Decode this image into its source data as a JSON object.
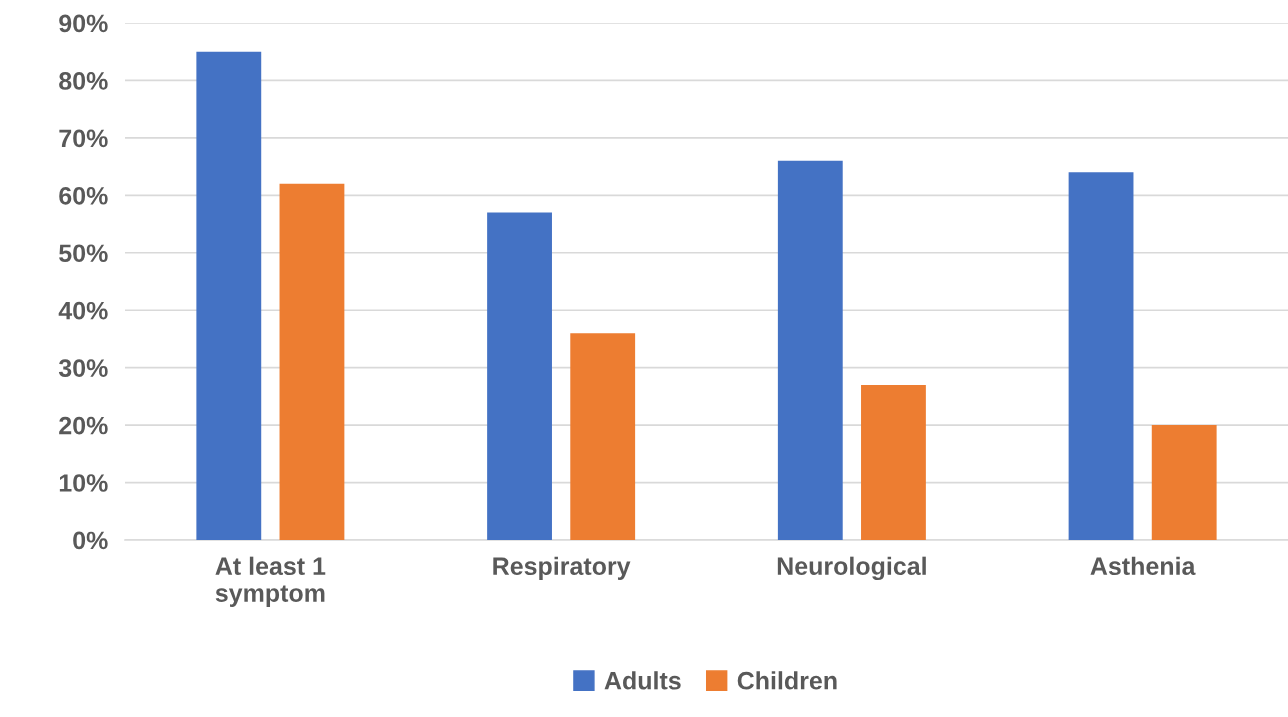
{
  "chart_data": {
    "type": "bar",
    "categories": [
      "At least 1\nsymptom",
      "Respiratory",
      "Neurological",
      "Asthenia"
    ],
    "series": [
      {
        "name": "Adults",
        "color": "#4472c4",
        "values": [
          85,
          57,
          66,
          64
        ]
      },
      {
        "name": "Children",
        "color": "#ed7d31",
        "values": [
          62,
          36,
          27,
          20
        ]
      }
    ],
    "ylim": [
      0,
      90
    ],
    "yticks": [
      {
        "value": 0,
        "label": "0%"
      },
      {
        "value": 10,
        "label": "10%"
      },
      {
        "value": 20,
        "label": "20%"
      },
      {
        "value": 30,
        "label": "30%"
      },
      {
        "value": 40,
        "label": "40%"
      },
      {
        "value": 50,
        "label": "50%"
      },
      {
        "value": 60,
        "label": "60%"
      },
      {
        "value": 70,
        "label": "70%"
      },
      {
        "value": 80,
        "label": "80%"
      },
      {
        "value": 90,
        "label": "90%"
      }
    ],
    "grid": "y",
    "legend": "bottom"
  }
}
